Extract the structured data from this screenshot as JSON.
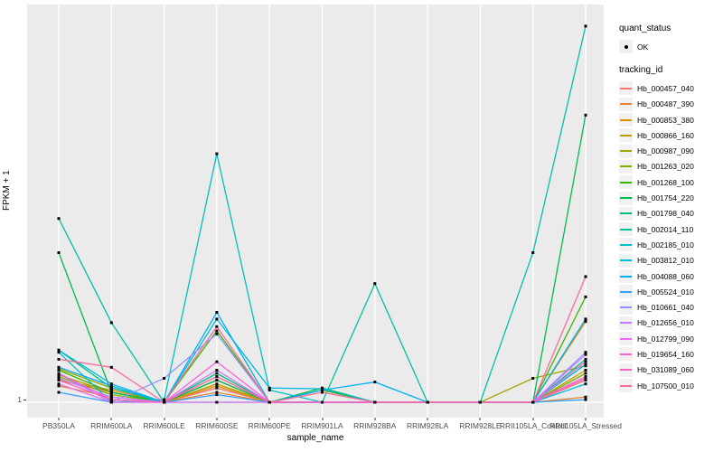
{
  "colors": {
    "panel_bg": "#EBEBEB",
    "gridline": "#FFFFFF",
    "tick_text": "#4D4D4D",
    "axis_text": "#000000",
    "point": "#000000",
    "legend_key_bg": "#F1F1F1"
  },
  "legend": {
    "quant_status_title": "quant_status",
    "quant_status_items": [
      {
        "label": "OK",
        "symbol": "point"
      }
    ],
    "tracking_title": "tracking_id"
  },
  "chart_data": {
    "type": "line",
    "title": "",
    "xlabel": "sample_name",
    "ylabel": "FPKM + 1",
    "yscale": "log10",
    "ytick_labels": [
      "1"
    ],
    "grid": "major-vertical-per-category, horizontal at y=1",
    "legend_position": "right",
    "ylim_approx": [
      1,
      1000
    ],
    "categories": [
      "PB350LA",
      "RRIM600LA",
      "RRIM600LE",
      "RRIM600SE",
      "RRIM600PE",
      "RRIM901LA",
      "RRIM928BA",
      "RRIM928LA",
      "RRIM928LE",
      "RRII105LA_Control",
      "RRII105LA_Stressed"
    ],
    "series": [
      {
        "name": "Hb_000457_040",
        "color": "#F8766D",
        "values": [
          1.5,
          1.2,
          1,
          1.3,
          1,
          1,
          1,
          1,
          1,
          1,
          1.5
        ]
      },
      {
        "name": "Hb_000487_390",
        "color": "#EA8331",
        "values": [
          1.35,
          1.1,
          1,
          1.2,
          1,
          1,
          1,
          1,
          1,
          1,
          1.1
        ]
      },
      {
        "name": "Hb_000853_380",
        "color": "#D89000",
        "values": [
          1.5,
          1.25,
          1,
          1.35,
          1,
          1,
          1,
          1,
          1,
          1,
          4.4
        ]
      },
      {
        "name": "Hb_000866_160",
        "color": "#C09B00",
        "values": [
          1.65,
          1.2,
          1,
          1.4,
          1,
          1,
          1,
          1,
          1,
          1,
          1.8
        ]
      },
      {
        "name": "Hb_000987_090",
        "color": "#A3A500",
        "values": [
          1.85,
          1.3,
          1,
          1.6,
          1,
          1,
          1,
          1,
          1,
          1.55,
          1.95
        ]
      },
      {
        "name": "Hb_001263_020",
        "color": "#7CAE00",
        "values": [
          1.6,
          1.15,
          1,
          1.5,
          1,
          1,
          1,
          1,
          1,
          1,
          1.7
        ]
      },
      {
        "name": "Hb_001268_100",
        "color": "#39B600",
        "values": [
          1.8,
          1.2,
          1,
          3.7,
          1,
          1.25,
          1,
          1,
          1,
          1,
          6.9
        ]
      },
      {
        "name": "Hb_001754_220",
        "color": "#00BB4E",
        "values": [
          15.5,
          1.2,
          1,
          1.5,
          1,
          1.3,
          1,
          1,
          1,
          1,
          193
        ]
      },
      {
        "name": "Hb_001798_040",
        "color": "#00BF7D",
        "values": [
          2.6,
          1.3,
          1,
          1.7,
          1,
          1,
          1,
          1,
          1,
          1,
          2.2
        ]
      },
      {
        "name": "Hb_002014_110",
        "color": "#00C1A3",
        "values": [
          29,
          4.3,
          1,
          1,
          1,
          1,
          8.8,
          1,
          1,
          15.5,
          985
        ]
      },
      {
        "name": "Hb_002185_010",
        "color": "#00BFC4",
        "values": [
          2.5,
          1,
          1.05,
          95,
          1.25,
          1,
          1,
          1,
          1,
          1,
          2
        ]
      },
      {
        "name": "Hb_003812_010",
        "color": "#00BAE0",
        "values": [
          2.6,
          1.4,
          1,
          4.6,
          1.3,
          1.28,
          1,
          1,
          1,
          1,
          1.4
        ]
      },
      {
        "name": "Hb_004088_060",
        "color": "#00B0F6",
        "values": [
          1.9,
          1.35,
          1,
          5.2,
          1,
          1.25,
          1.45,
          1,
          1,
          1,
          4.6
        ]
      },
      {
        "name": "Hb_005524_010",
        "color": "#35A2FF",
        "values": [
          1.2,
          1,
          1,
          1.15,
          1,
          1,
          1,
          1,
          1,
          1,
          1.05
        ]
      },
      {
        "name": "Hb_010661_040",
        "color": "#9590FF",
        "values": [
          1.7,
          1,
          1.55,
          3.5,
          1,
          1,
          1,
          1,
          1,
          1,
          2.5
        ]
      },
      {
        "name": "Hb_012656_010",
        "color": "#C77CFF",
        "values": [
          1.55,
          1.1,
          1,
          1.8,
          1,
          1,
          1,
          1,
          1,
          1,
          2.4
        ]
      },
      {
        "name": "Hb_012799_090",
        "color": "#E76BF3",
        "values": [
          1.4,
          1,
          1,
          1,
          1,
          1,
          1,
          1,
          1,
          1,
          2.1
        ]
      },
      {
        "name": "Hb_019654_160",
        "color": "#FA62DB",
        "values": [
          1.7,
          1.05,
          1,
          2.1,
          1,
          1,
          1,
          1,
          1,
          1,
          1.6
        ]
      },
      {
        "name": "Hb_031089_060",
        "color": "#FF62BC",
        "values": [
          1.5,
          1.05,
          1,
          1.6,
          1,
          1,
          1,
          1,
          1,
          1,
          1.55
        ]
      },
      {
        "name": "Hb_107500_010",
        "color": "#FF6A98",
        "values": [
          2.2,
          1.9,
          1,
          4.0,
          1,
          1.2,
          1,
          1,
          1,
          1,
          10
        ]
      }
    ]
  }
}
